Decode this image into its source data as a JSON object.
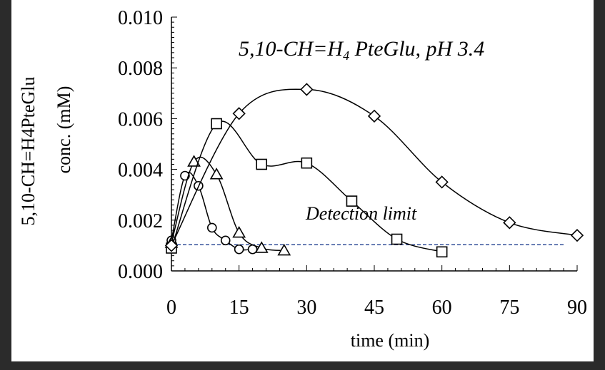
{
  "chart_data": {
    "type": "line",
    "title": "",
    "xlabel": "time (min)",
    "ylabel_lines": [
      "5,10-CH=H4PteGlu",
      "conc. (mM)"
    ],
    "xlim": [
      0,
      90
    ],
    "ylim": [
      0,
      0.01
    ],
    "x_ticks": [
      0,
      15,
      30,
      45,
      60,
      75,
      90
    ],
    "y_ticks": [
      0.0,
      0.002,
      0.004,
      0.006,
      0.008,
      0.01
    ],
    "x_tick_labels": [
      "0",
      "15",
      "30",
      "45",
      "60",
      "75",
      "90"
    ],
    "y_tick_labels": [
      "0.000",
      "0.002",
      "0.004",
      "0.006",
      "0.008",
      "0.010"
    ],
    "grid": false,
    "annotation": {
      "parts": [
        "5,10-CH=H",
        "4",
        " PteGlu, pH 3.4"
      ]
    },
    "detection_limit": {
      "label": "Detection limit",
      "value": 0.00103,
      "x_range": [
        0,
        87
      ],
      "color": "#1f3f8f"
    },
    "series": [
      {
        "marker": "circle",
        "points": [
          [
            0,
            0.0012
          ],
          [
            3,
            0.00375
          ],
          [
            6,
            0.00335
          ],
          [
            9,
            0.0017
          ],
          [
            12,
            0.0012
          ],
          [
            15,
            0.00085
          ],
          [
            18,
            0.00085
          ]
        ]
      },
      {
        "marker": "triangle",
        "points": [
          [
            0,
            0.0011
          ],
          [
            5,
            0.0043
          ],
          [
            10,
            0.0038
          ],
          [
            15,
            0.0015
          ],
          [
            20,
            0.0009
          ],
          [
            25,
            0.0008
          ]
        ]
      },
      {
        "marker": "square",
        "points": [
          [
            0,
            0.0009
          ],
          [
            10,
            0.0058
          ],
          [
            20,
            0.0042
          ],
          [
            30,
            0.00425
          ],
          [
            40,
            0.00275
          ],
          [
            50,
            0.00125
          ],
          [
            60,
            0.00075
          ]
        ]
      },
      {
        "marker": "diamond",
        "points": [
          [
            0,
            0.001
          ],
          [
            15,
            0.0062
          ],
          [
            30,
            0.00715
          ],
          [
            45,
            0.0061
          ],
          [
            60,
            0.0035
          ],
          [
            75,
            0.0019
          ],
          [
            90,
            0.0014
          ]
        ]
      }
    ]
  }
}
